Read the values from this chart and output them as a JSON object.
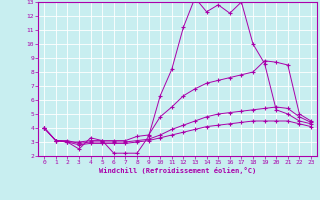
{
  "xlabel": "Windchill (Refroidissement éolien,°C)",
  "xlim": [
    -0.5,
    23.5
  ],
  "ylim": [
    2,
    13
  ],
  "xticks": [
    0,
    1,
    2,
    3,
    4,
    5,
    6,
    7,
    8,
    9,
    10,
    11,
    12,
    13,
    14,
    15,
    16,
    17,
    18,
    19,
    20,
    21,
    22,
    23
  ],
  "yticks": [
    2,
    3,
    4,
    5,
    6,
    7,
    8,
    9,
    10,
    11,
    12,
    13
  ],
  "bg_color": "#c8eef0",
  "line_color": "#aa00aa",
  "grid_color": "#ffffff",
  "lines": [
    {
      "x": [
        0,
        1,
        2,
        3,
        4,
        5,
        6,
        7,
        8,
        9,
        10,
        11,
        12,
        13,
        14,
        15,
        16,
        17,
        18,
        19,
        20,
        21,
        22,
        23
      ],
      "y": [
        4.0,
        3.1,
        3.0,
        2.5,
        3.3,
        3.1,
        2.2,
        2.2,
        2.2,
        3.4,
        6.3,
        8.2,
        11.2,
        13.3,
        12.3,
        12.8,
        12.2,
        13.0,
        10.0,
        8.6,
        5.3,
        5.0,
        4.5,
        4.3
      ]
    },
    {
      "x": [
        0,
        1,
        2,
        3,
        4,
        5,
        6,
        7,
        8,
        9,
        10,
        11,
        12,
        13,
        14,
        15,
        16,
        17,
        18,
        19,
        20,
        21,
        22,
        23
      ],
      "y": [
        4.0,
        3.1,
        3.0,
        3.0,
        3.1,
        3.1,
        3.1,
        3.1,
        3.4,
        3.5,
        4.8,
        5.5,
        6.3,
        6.8,
        7.2,
        7.4,
        7.6,
        7.8,
        8.0,
        8.8,
        8.7,
        8.5,
        5.0,
        4.5
      ]
    },
    {
      "x": [
        0,
        1,
        2,
        3,
        4,
        5,
        6,
        7,
        8,
        9,
        10,
        11,
        12,
        13,
        14,
        15,
        16,
        17,
        18,
        19,
        20,
        21,
        22,
        23
      ],
      "y": [
        4.0,
        3.1,
        3.1,
        2.9,
        3.0,
        3.0,
        3.0,
        3.0,
        3.1,
        3.2,
        3.5,
        3.9,
        4.2,
        4.5,
        4.8,
        5.0,
        5.1,
        5.2,
        5.3,
        5.4,
        5.5,
        5.4,
        4.8,
        4.4
      ]
    },
    {
      "x": [
        0,
        1,
        2,
        3,
        4,
        5,
        6,
        7,
        8,
        9,
        10,
        11,
        12,
        13,
        14,
        15,
        16,
        17,
        18,
        19,
        20,
        21,
        22,
        23
      ],
      "y": [
        4.0,
        3.1,
        3.0,
        2.8,
        2.9,
        2.9,
        2.9,
        2.9,
        3.0,
        3.1,
        3.3,
        3.5,
        3.7,
        3.9,
        4.1,
        4.2,
        4.3,
        4.4,
        4.5,
        4.5,
        4.5,
        4.5,
        4.3,
        4.1
      ]
    }
  ]
}
